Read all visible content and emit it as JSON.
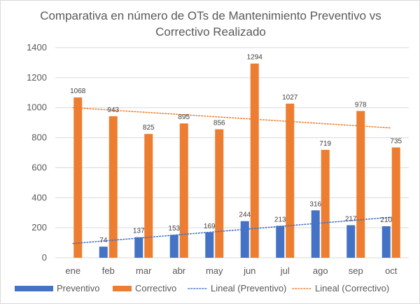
{
  "chart_data": {
    "type": "bar",
    "title_line1": "Comparativa en número de OTs de Mantenimiento Preventivo vs",
    "title_line2": "Correctivo Realizado",
    "categories": [
      "ene",
      "feb",
      "mar",
      "abr",
      "may",
      "jun",
      "jul",
      "ago",
      "sep",
      "oct"
    ],
    "series": [
      {
        "name": "Preventivo",
        "color": "#4472C4",
        "values": [
          null,
          74,
          137,
          153,
          169,
          244,
          213,
          316,
          217,
          210
        ]
      },
      {
        "name": "Correctivo",
        "color": "#ED7D31",
        "values": [
          1068,
          943,
          825,
          895,
          856,
          1294,
          1027,
          719,
          978,
          735
        ]
      }
    ],
    "trendlines": [
      {
        "name": "Lineal (Preventivo)",
        "color": "#4472C4",
        "style": "dotted",
        "start": 95,
        "end": 270
      },
      {
        "name": "Lineal (Correctivo)",
        "color": "#ED7D31",
        "style": "dotted",
        "start": 1000,
        "end": 865
      }
    ],
    "yticks": [
      "0",
      "200",
      "400",
      "600",
      "800",
      "1000",
      "1200",
      "1400"
    ],
    "ylim": [
      0,
      1400
    ],
    "grid": true,
    "legend_position": "bottom"
  }
}
